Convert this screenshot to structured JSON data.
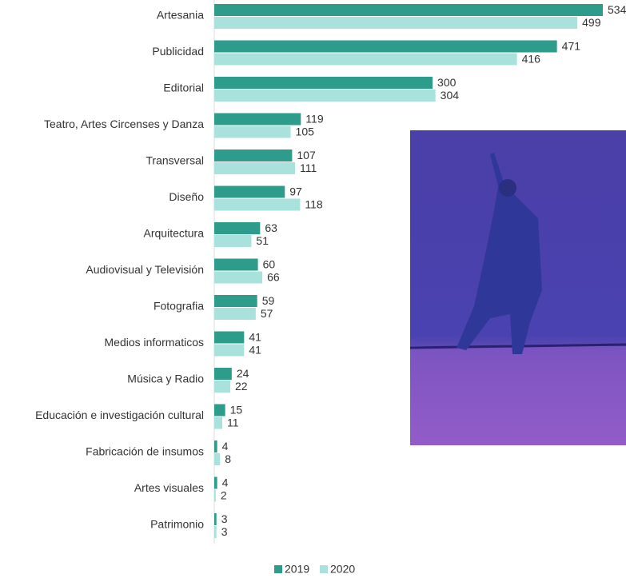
{
  "chart_data": {
    "type": "bar",
    "orientation": "horizontal",
    "categories": [
      "Artesania",
      "Publicidad",
      "Editorial",
      "Teatro, Artes Circenses y Danza",
      "Transversal",
      "Diseño",
      "Arquitectura",
      "Audiovisual y Televisión",
      "Fotografia",
      "Medios informaticos",
      "Música y Radio",
      "Educación e investigación cultural",
      "Fabricación de insumos",
      "Artes visuales",
      "Patrimonio"
    ],
    "series": [
      {
        "name": "2019",
        "color": "#2e9c8a",
        "values": [
          534,
          471,
          300,
          119,
          107,
          97,
          63,
          60,
          59,
          41,
          24,
          15,
          4,
          4,
          3
        ]
      },
      {
        "name": "2020",
        "color": "#a9e2dd",
        "values": [
          499,
          416,
          304,
          105,
          111,
          118,
          51,
          66,
          57,
          41,
          22,
          11,
          8,
          2,
          3
        ]
      }
    ],
    "legend": "bottom"
  }
}
